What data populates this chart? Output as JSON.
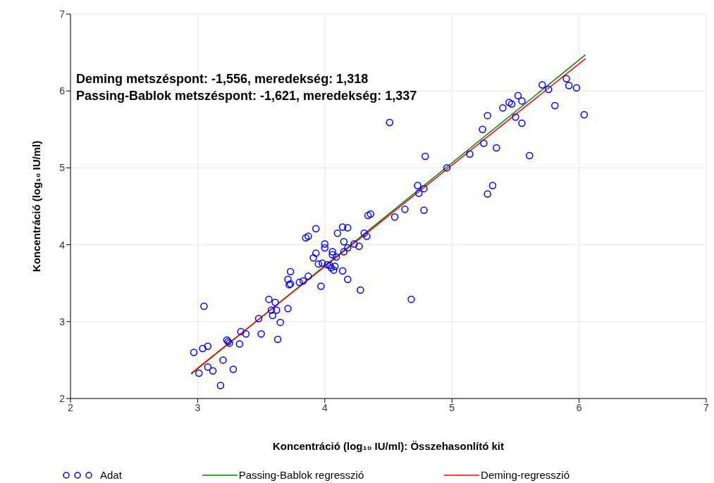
{
  "chart_data": {
    "type": "scatter",
    "xlabel": "Koncentráció (log₁₀ IU/ml): Összehasonlító kit",
    "ylabel": "Koncentráció (log₁₀ IU/ml)",
    "annotations": [
      "Deming metszéspont: -1,556, meredekség: 1,318",
      "Passing-Bablok metszéspont: -1,621, meredekség: 1,337"
    ],
    "xlim": [
      2,
      7
    ],
    "ylim": [
      2,
      7
    ],
    "xticks": [
      2,
      3,
      4,
      5,
      6,
      7
    ],
    "yticks": [
      2,
      3,
      4,
      5,
      6,
      7
    ],
    "grid": true,
    "legend": "bottom",
    "series": [
      {
        "name": "Adat",
        "marker": "circle",
        "color": "#0000ff",
        "x": [
          2.97,
          3.01,
          3.04,
          3.05,
          3.08,
          3.08,
          3.12,
          3.18,
          3.2,
          3.23,
          3.24,
          3.25,
          3.28,
          3.33,
          3.34,
          3.38,
          3.48,
          3.5,
          3.56,
          3.58,
          3.61,
          3.59,
          3.62,
          3.63,
          3.65,
          3.71,
          3.72,
          3.71,
          3.73,
          3.73,
          3.8,
          3.83,
          3.85,
          3.87,
          3.87,
          3.91,
          3.93,
          3.93,
          3.95,
          3.97,
          3.98,
          4.0,
          4.0,
          4.02,
          4.04,
          4.05,
          4.06,
          4.06,
          4.07,
          4.08,
          4.1,
          4.09,
          4.14,
          4.15,
          4.14,
          4.15,
          4.18,
          4.18,
          4.18,
          4.23,
          4.27,
          4.28,
          4.31,
          4.33,
          4.34,
          4.36,
          4.51,
          4.55,
          4.63,
          4.68,
          4.73,
          4.74,
          4.78,
          4.78,
          4.79,
          4.96,
          5.14,
          5.24,
          5.25,
          5.28,
          5.28,
          5.32,
          5.35,
          5.4,
          5.45,
          5.47,
          5.5,
          5.52,
          5.55,
          5.55,
          5.61,
          5.71,
          5.76,
          5.81,
          5.9,
          5.92,
          5.98,
          6.04
        ],
        "values": [
          2.6,
          2.33,
          2.65,
          3.2,
          2.68,
          2.41,
          2.36,
          2.17,
          2.5,
          2.76,
          2.74,
          2.72,
          2.38,
          2.71,
          2.87,
          2.84,
          3.04,
          2.84,
          3.29,
          3.15,
          3.25,
          3.08,
          3.15,
          2.77,
          2.99,
          3.55,
          3.48,
          3.17,
          3.65,
          3.49,
          3.51,
          3.53,
          4.09,
          4.11,
          3.59,
          3.83,
          4.21,
          3.89,
          3.75,
          3.46,
          3.76,
          4.01,
          3.96,
          3.74,
          3.73,
          3.7,
          3.91,
          3.87,
          3.67,
          3.72,
          4.15,
          3.84,
          4.23,
          4.04,
          3.66,
          3.91,
          3.96,
          4.22,
          3.55,
          4.01,
          3.98,
          3.41,
          4.15,
          4.11,
          4.38,
          4.4,
          5.59,
          4.36,
          4.46,
          3.29,
          4.77,
          4.67,
          4.45,
          4.73,
          5.15,
          5.0,
          5.18,
          5.5,
          5.32,
          5.68,
          4.66,
          4.77,
          5.26,
          5.78,
          5.85,
          5.83,
          5.66,
          5.94,
          5.87,
          5.58,
          5.16,
          6.08,
          6.02,
          5.81,
          6.16,
          6.07,
          6.04,
          5.69
        ]
      },
      {
        "name": "Passing-Bablok regresszió",
        "type": "line",
        "color": "#008000",
        "marker": "none",
        "x": [
          2.95,
          6.05
        ],
        "values": [
          2.32,
          6.47
        ]
      },
      {
        "name": "Deming-regresszió",
        "type": "line",
        "color": "#ff0000",
        "marker": "none",
        "x": [
          2.95,
          6.05
        ],
        "values": [
          2.33,
          6.42
        ]
      }
    ]
  }
}
